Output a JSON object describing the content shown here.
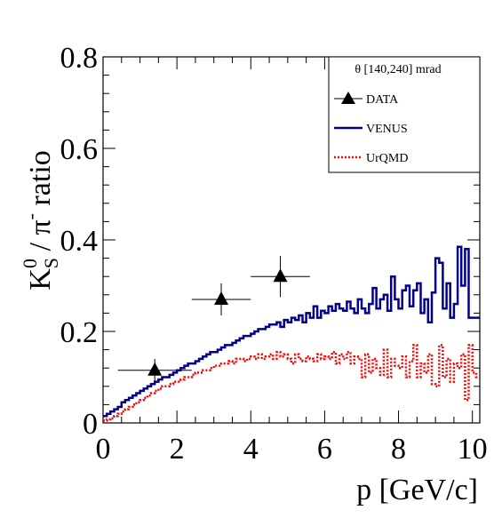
{
  "chart_data": {
    "type": "line",
    "xlabel": "p [GeV/c]",
    "ylabel_main": "K",
    "ylabel_sup": "0",
    "ylabel_sub": "S",
    "ylabel_rest": " / π",
    "ylabel_sup2": "-",
    "ylabel_tail": " ratio",
    "xlim": [
      0,
      10.2
    ],
    "ylim": [
      0,
      0.8
    ],
    "x_ticks": [
      "0",
      "2",
      "4",
      "6",
      "8",
      "10"
    ],
    "y_ticks": [
      "0",
      "0.2",
      "0.4",
      "0.6",
      "0.8"
    ],
    "grid": false,
    "legend": {
      "placement": "top-right",
      "header": "θ [140,240] mrad",
      "entries": [
        "DATA",
        "VENUS",
        "UrQMD"
      ]
    },
    "series": [
      {
        "name": "DATA",
        "style": "markers-triangle",
        "color": "#000000",
        "points": [
          {
            "x": 1.4,
            "y": 0.115,
            "xerr": 1.0,
            "yerr": 0.025
          },
          {
            "x": 3.2,
            "y": 0.27,
            "xerr": 0.8,
            "yerr": 0.035
          },
          {
            "x": 4.8,
            "y": 0.32,
            "xerr": 0.8,
            "yerr": 0.045
          }
        ]
      },
      {
        "name": "VENUS",
        "style": "step-solid",
        "color": "#00008b",
        "bin_width": 0.1,
        "x_start": 0.0,
        "values": [
          0.015,
          0.02,
          0.025,
          0.03,
          0.035,
          0.045,
          0.05,
          0.055,
          0.06,
          0.065,
          0.07,
          0.075,
          0.08,
          0.085,
          0.09,
          0.095,
          0.1,
          0.1,
          0.105,
          0.11,
          0.115,
          0.12,
          0.125,
          0.13,
          0.13,
          0.135,
          0.14,
          0.145,
          0.15,
          0.155,
          0.155,
          0.16,
          0.165,
          0.17,
          0.17,
          0.175,
          0.18,
          0.185,
          0.19,
          0.19,
          0.195,
          0.2,
          0.205,
          0.205,
          0.21,
          0.215,
          0.215,
          0.22,
          0.21,
          0.225,
          0.22,
          0.23,
          0.225,
          0.235,
          0.22,
          0.24,
          0.23,
          0.255,
          0.23,
          0.245,
          0.24,
          0.255,
          0.245,
          0.26,
          0.25,
          0.245,
          0.265,
          0.25,
          0.24,
          0.27,
          0.25,
          0.24,
          0.26,
          0.295,
          0.25,
          0.27,
          0.28,
          0.245,
          0.32,
          0.27,
          0.25,
          0.29,
          0.3,
          0.255,
          0.29,
          0.305,
          0.24,
          0.27,
          0.22,
          0.285,
          0.36,
          0.35,
          0.25,
          0.305,
          0.23,
          0.26,
          0.385,
          0.3,
          0.38,
          0.23,
          0.23,
          0.23
        ]
      },
      {
        "name": "UrQMD",
        "style": "step-dotted",
        "color": "#ff0000",
        "bin_width": 0.1,
        "x_start": 0.0,
        "values": [
          0.005,
          0.008,
          0.01,
          0.015,
          0.02,
          0.025,
          0.03,
          0.035,
          0.04,
          0.045,
          0.05,
          0.055,
          0.06,
          0.065,
          0.07,
          0.075,
          0.08,
          0.08,
          0.085,
          0.09,
          0.09,
          0.095,
          0.1,
          0.1,
          0.105,
          0.11,
          0.11,
          0.115,
          0.115,
          0.12,
          0.125,
          0.125,
          0.13,
          0.13,
          0.135,
          0.13,
          0.14,
          0.14,
          0.135,
          0.14,
          0.145,
          0.14,
          0.15,
          0.14,
          0.145,
          0.15,
          0.14,
          0.155,
          0.145,
          0.15,
          0.14,
          0.13,
          0.15,
          0.14,
          0.135,
          0.145,
          0.14,
          0.135,
          0.15,
          0.14,
          0.145,
          0.14,
          0.155,
          0.13,
          0.15,
          0.14,
          0.155,
          0.13,
          0.145,
          0.14,
          0.1,
          0.15,
          0.11,
          0.14,
          0.12,
          0.105,
          0.16,
          0.1,
          0.14,
          0.125,
          0.12,
          0.145,
          0.1,
          0.135,
          0.17,
          0.1,
          0.13,
          0.11,
          0.15,
          0.085,
          0.08,
          0.17,
          0.1,
          0.14,
          0.09,
          0.13,
          0.12,
          0.15,
          0.05,
          0.17,
          0.11,
          0.1
        ]
      }
    ]
  }
}
